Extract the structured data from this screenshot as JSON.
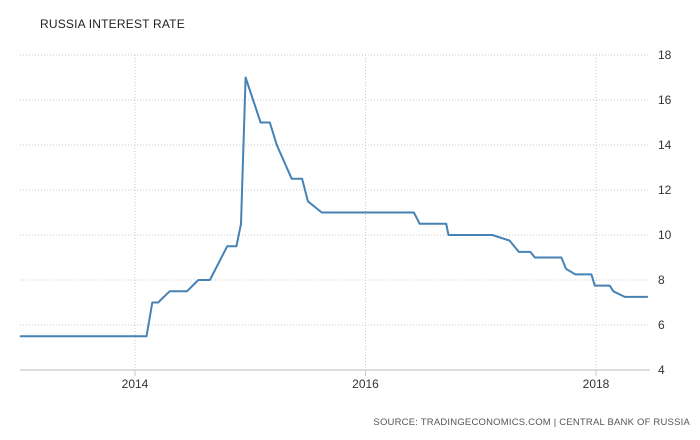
{
  "chart_data": {
    "type": "line",
    "title": "RUSSIA INTEREST RATE",
    "xlabel": "",
    "ylabel": "",
    "source": "SOURCE: TRADINGECONOMICS.COM | CENTRAL BANK OF RUSSIA",
    "xlim": [
      2013.0,
      2018.45
    ],
    "ylim": [
      4,
      18
    ],
    "x_ticks": [
      2014,
      2016,
      2018
    ],
    "y_ticks": [
      4,
      6,
      8,
      10,
      12,
      14,
      16,
      18
    ],
    "grid": true,
    "line_color": "#4682b4",
    "series": [
      {
        "points": [
          [
            2013.0,
            5.5
          ],
          [
            2014.1,
            5.5
          ],
          [
            2014.15,
            7.0
          ],
          [
            2014.2,
            7.0
          ],
          [
            2014.3,
            7.5
          ],
          [
            2014.45,
            7.5
          ],
          [
            2014.55,
            8.0
          ],
          [
            2014.65,
            8.0
          ],
          [
            2014.8,
            9.5
          ],
          [
            2014.88,
            9.5
          ],
          [
            2014.92,
            10.5
          ],
          [
            2014.96,
            17.0
          ],
          [
            2015.09,
            15.0
          ],
          [
            2015.17,
            15.0
          ],
          [
            2015.23,
            14.0
          ],
          [
            2015.36,
            12.5
          ],
          [
            2015.45,
            12.5
          ],
          [
            2015.5,
            11.5
          ],
          [
            2015.62,
            11.0
          ],
          [
            2016.42,
            11.0
          ],
          [
            2016.47,
            10.5
          ],
          [
            2016.7,
            10.5
          ],
          [
            2016.72,
            10.0
          ],
          [
            2017.1,
            10.0
          ],
          [
            2017.25,
            9.75
          ],
          [
            2017.33,
            9.25
          ],
          [
            2017.43,
            9.25
          ],
          [
            2017.47,
            9.0
          ],
          [
            2017.7,
            9.0
          ],
          [
            2017.74,
            8.5
          ],
          [
            2017.82,
            8.25
          ],
          [
            2017.96,
            8.25
          ],
          [
            2017.99,
            7.75
          ],
          [
            2018.12,
            7.75
          ],
          [
            2018.15,
            7.5
          ],
          [
            2018.25,
            7.25
          ],
          [
            2018.45,
            7.25
          ]
        ]
      }
    ]
  }
}
